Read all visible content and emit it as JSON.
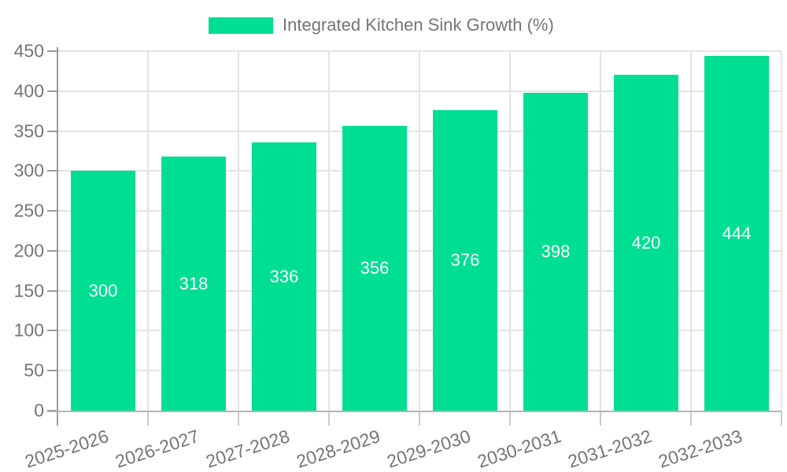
{
  "legend": {
    "label": "Integrated Kitchen Sink Growth (%)"
  },
  "chart_data": {
    "type": "bar",
    "title": "Integrated Kitchen Sink Growth (%)",
    "categories": [
      "2025-2026",
      "2026-2027",
      "2027-2028",
      "2028-2029",
      "2029-2030",
      "2030-2031",
      "2031-2032",
      "2032-2033"
    ],
    "values": [
      300,
      318,
      336,
      356,
      376,
      398,
      420,
      444
    ],
    "value_labels": [
      "300",
      "318",
      "336",
      "356",
      "376",
      "398",
      "420",
      "444"
    ],
    "ytick_labels": [
      "0",
      "50",
      "100",
      "150",
      "200",
      "250",
      "300",
      "350",
      "400",
      "450"
    ],
    "ylim": [
      0,
      450
    ],
    "ytick_step": 50,
    "xlabel": "",
    "ylabel": "",
    "grid": true,
    "legend_position": "top",
    "colors": {
      "bar": "#00DE92",
      "axis_text": "#757575",
      "value_text": "#ffffff",
      "gridline": "#e4e4e4",
      "y_axis_line": "#9a9a9a",
      "x_axis_line": "#b3b3b3",
      "minor_tick": "#cbcbcb"
    }
  }
}
